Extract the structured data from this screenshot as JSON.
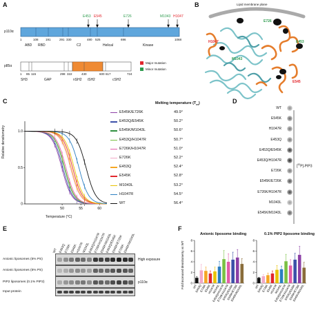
{
  "panels": {
    "A": "A",
    "B": "B",
    "C": "C",
    "D": "D",
    "E": "E",
    "F": "F"
  },
  "panelA": {
    "p110_name": "p110α",
    "p110_domains": [
      "ABD",
      "RBD",
      "C2",
      "Helical",
      "Kinase"
    ],
    "p110_positions": [
      "1",
      "108",
      "191",
      "291",
      "330",
      "480",
      "525",
      "696",
      "1068"
    ],
    "mutations_top": [
      {
        "label": "E453",
        "color": "#2e9b4e"
      },
      {
        "label": "E545",
        "color": "#e2262c"
      },
      {
        "label": "E726",
        "color": "#2e9b4e"
      },
      {
        "label": "M1043",
        "color": "#2e9b4e"
      },
      {
        "label": "H1047",
        "color": "#e2262c"
      }
    ],
    "p85_name": "p85α",
    "p85_domains": [
      "SH3",
      "GAP",
      "nSH2",
      "iSH2",
      "cSH2"
    ],
    "p85_positions": [
      "1",
      "85",
      "115",
      "298",
      "322",
      "430",
      "600",
      "617",
      "724"
    ],
    "legend": [
      {
        "label": "Major mutation",
        "color": "#e2262c"
      },
      {
        "label": "Minor mutation",
        "color": "#2e9b4e"
      }
    ]
  },
  "panelB": {
    "title": "Lipid membrane plane",
    "labels": [
      {
        "text": "E726",
        "color": "#2e9b4e"
      },
      {
        "text": "E453",
        "color": "#2e9b4e"
      },
      {
        "text": "H1047",
        "color": "#e2262c"
      },
      {
        "text": "M1043",
        "color": "#2e9b4e"
      },
      {
        "text": "E545",
        "color": "#e2262c"
      }
    ]
  },
  "panelC": {
    "ylabel": "Relative densitometry",
    "xlabel": "Temperature (°C)",
    "melt_header": "Melting temperature (T",
    "melt_sub": "m",
    "melt_close": ")"
  },
  "chart_data": {
    "type": "line",
    "xlabel": "Temperature (°C)",
    "ylabel": "Relative densitometry",
    "xlim": [
      40,
      62
    ],
    "ylim": [
      0,
      1.1
    ],
    "x_ticks": [
      "50",
      "55",
      "60"
    ],
    "y_ticks": [
      "0",
      "0.5",
      "1.0"
    ],
    "legend_position": "right",
    "series": [
      {
        "name": "E545K/E726K",
        "tm": "49.9°",
        "tm_value": 49.9,
        "color": "#8b3fa6"
      },
      {
        "name": "E453Q/E545K",
        "tm": "50.2°",
        "tm_value": 50.2,
        "color": "#3b4fa8"
      },
      {
        "name": "E545K/M1043L",
        "tm": "50.6°",
        "tm_value": 50.6,
        "color": "#2f8f3e"
      },
      {
        "name": "E453Q/H1047R",
        "tm": "50.7°",
        "tm_value": 50.7,
        "color": "#7ac143"
      },
      {
        "name": "E726K/H1047R",
        "tm": "51.0°",
        "tm_value": 51.0,
        "color": "#e35ca8"
      },
      {
        "name": "E726K",
        "tm": "52.2°",
        "tm_value": 52.2,
        "color": "#f2a9c8"
      },
      {
        "name": "E453Q",
        "tm": "52.4°",
        "tm_value": 52.4,
        "color": "#f5a623"
      },
      {
        "name": "E545K",
        "tm": "52.8°",
        "tm_value": 52.8,
        "color": "#e2262c"
      },
      {
        "name": "M1043L",
        "tm": "53.2°",
        "tm_value": 53.2,
        "color": "#e8c200"
      },
      {
        "name": "H1047R",
        "tm": "54.5°",
        "tm_value": 54.5,
        "color": "#2b7fc1"
      },
      {
        "name": "WT",
        "tm": "56.4°",
        "tm_value": 56.4,
        "color": "#111111"
      }
    ]
  },
  "panelD": {
    "rows": [
      "WT",
      "E545K",
      "H1047R",
      "E453Q",
      "E453Q/E545K",
      "E453Q/H1047R",
      "E726K",
      "E545K/E726K",
      "E726K/H1047R",
      "M1043L",
      "E545K/M1043L"
    ],
    "spot_intensity": [
      0.45,
      0.6,
      0.55,
      0.55,
      0.8,
      0.85,
      0.55,
      0.7,
      0.75,
      0.4,
      0.65
    ],
    "side_label_pre": "[",
    "side_label_sup": "32",
    "side_label_post": "P]-PIP3"
  },
  "panelE": {
    "lanes": [
      "WT",
      "E453Q",
      "E726K",
      "E545K",
      "H1047R",
      "M1043L",
      "E453Q/H1047R",
      "E726K/H1047R",
      "E545K/M1043L",
      "E453Q/E545K",
      "E545K/E726K",
      "E726K",
      "E545K/M1043L"
    ],
    "rows": [
      {
        "label": "Anionic liposomes (5% PS)",
        "right": "High exposure"
      },
      {
        "label": "Anionic liposomes (5% PS)",
        "right": ""
      },
      {
        "label": "PIP2 liposomes (0.1% PIP2)",
        "right": "p110α"
      },
      {
        "label": "Input protein",
        "right": ""
      }
    ],
    "row_intensities": [
      [
        0.25,
        0.35,
        0.45,
        0.55,
        0.5,
        0.4,
        0.75,
        0.7,
        0.7,
        0.8,
        0.85,
        0.8,
        0.75
      ],
      [
        0.15,
        0.2,
        0.3,
        0.35,
        0.3,
        0.25,
        0.55,
        0.5,
        0.5,
        0.6,
        0.65,
        0.6,
        0.55
      ],
      [
        0.2,
        0.3,
        0.35,
        0.4,
        0.45,
        0.35,
        0.6,
        0.55,
        0.5,
        0.65,
        0.7,
        0.65,
        0.55
      ],
      [
        0.7,
        0.7,
        0.7,
        0.7,
        0.7,
        0.7,
        0.7,
        0.7,
        0.7,
        0.7,
        0.7,
        0.7,
        0.7
      ]
    ]
  },
  "panelF": {
    "ylabel": "Fold increased densitometry vs WT",
    "charts": [
      {
        "title": "Anionic liposome binding",
        "categories": [
          "WT",
          "E453Q",
          "E726K",
          "E545K",
          "H1047R",
          "M1043L",
          "E453Q/H1047R",
          "E726K/H1047R",
          "E453Q/E545K",
          "E545K/E726K",
          "E545K/M1043L"
        ],
        "values": [
          1.0,
          2.4,
          2.3,
          1.8,
          2.2,
          3.1,
          4.5,
          4.0,
          4.4,
          4.8,
          3.6
        ],
        "errors": [
          0.2,
          1.1,
          0.7,
          0.5,
          0.8,
          1.0,
          1.6,
          1.5,
          1.4,
          1.5,
          1.0
        ],
        "colors": [
          "#111111",
          "#f2a9c8",
          "#f5a623",
          "#e2262c",
          "#e8c200",
          "#2b7fc1",
          "#7ac143",
          "#e35ca8",
          "#3b4fa8",
          "#8b3fa6",
          "#8a6d3b"
        ],
        "ylim": [
          0,
          8
        ],
        "yticks": [
          "0",
          "2",
          "4",
          "6",
          "8"
        ]
      },
      {
        "title": "0.1% PIP2 liposome binding",
        "categories": [
          "WT",
          "E453Q",
          "E726K",
          "E545K",
          "H1047R",
          "M1043L",
          "E453Q/H1047R",
          "E726K/H1047R",
          "E453Q/E545K",
          "E545K/E726K",
          "E545K/M1043L"
        ],
        "values": [
          1.0,
          1.3,
          1.5,
          1.8,
          2.5,
          2.6,
          4.1,
          3.3,
          4.4,
          5.3,
          2.9
        ],
        "errors": [
          0.1,
          0.3,
          0.4,
          0.5,
          0.8,
          0.6,
          1.3,
          1.1,
          1.2,
          1.6,
          1.0
        ],
        "colors": [
          "#111111",
          "#f2a9c8",
          "#f5a623",
          "#e2262c",
          "#e8c200",
          "#2b7fc1",
          "#7ac143",
          "#e35ca8",
          "#3b4fa8",
          "#8b3fa6",
          "#8a6d3b"
        ],
        "ylim": [
          0,
          8
        ],
        "yticks": [
          "0",
          "2",
          "4",
          "6",
          "8"
        ]
      }
    ]
  }
}
